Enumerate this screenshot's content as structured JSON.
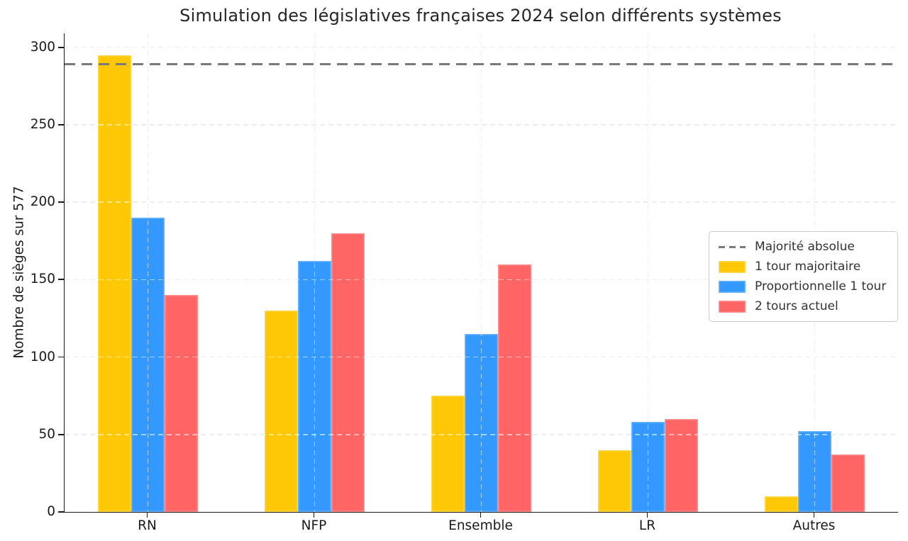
{
  "chart_data": {
    "type": "bar",
    "title": "Simulation des législatives françaises 2024 selon différents systèmes",
    "ylabel": "Nombre de sièges sur 577",
    "xlabel": "",
    "categories": [
      "RN",
      "NFP",
      "Ensemble",
      "LR",
      "Autres"
    ],
    "series": [
      {
        "name": "1 tour majoritaire",
        "color": "#FFC807",
        "values": [
          295,
          130,
          75,
          40,
          10
        ]
      },
      {
        "name": "Proportionnelle 1 tour",
        "color": "#3399FF",
        "values": [
          190,
          162,
          115,
          58,
          52
        ]
      },
      {
        "name": "2 tours actuel",
        "color": "#FF6565",
        "values": [
          140,
          180,
          160,
          60,
          37
        ]
      }
    ],
    "reference_line": {
      "label": "Majorité absolue",
      "value": 289,
      "color": "#7a7a7a",
      "style": "dashed"
    },
    "ylim": [
      0,
      309
    ],
    "yticks": [
      0,
      50,
      100,
      150,
      200,
      250,
      300
    ],
    "grid": true,
    "legend_position": "center-right"
  }
}
